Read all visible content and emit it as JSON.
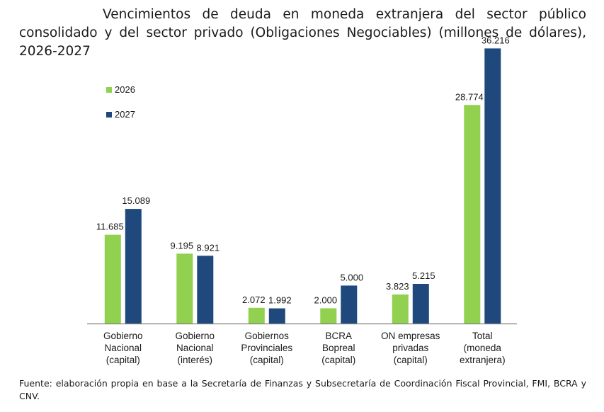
{
  "chart_data": {
    "type": "bar",
    "title": "Vencimientos de deuda en moneda extranjera del sector público consolidado y del sector privado (Obligaciones Negociables) (millones de dólares), 2026-2027",
    "categories": [
      [
        "Gobierno",
        "Nacional",
        "(capital)"
      ],
      [
        "Gobierno",
        "Nacional",
        "(interés)"
      ],
      [
        "Gobiernos",
        "Provinciales",
        "(capital)"
      ],
      [
        "BCRA",
        "Bopreal",
        "(capital)"
      ],
      [
        "ON empresas",
        "privadas",
        "(capital)"
      ],
      [
        "Total",
        "(moneda",
        "extranjera)"
      ]
    ],
    "series": [
      {
        "name": "2026",
        "color": "#92d050",
        "values": [
          11685,
          9195,
          2072,
          2000,
          3823,
          28774
        ],
        "labels": [
          "11.685",
          "9.195",
          "2.072",
          "2.000",
          "3.823",
          "28.774"
        ]
      },
      {
        "name": "2027",
        "color": "#1f497d",
        "values": [
          15089,
          8921,
          1992,
          5000,
          5215,
          36216
        ],
        "labels": [
          "15.089",
          "8.921",
          "1.992",
          "5.000",
          "5.215",
          "36.216"
        ]
      }
    ],
    "xlabel": "",
    "ylabel": "",
    "ylim": [
      0,
      37000
    ],
    "grid": false,
    "legend": "top-left"
  },
  "source_text": "Fuente: elaboración propia en base a la Secretaría de Finanzas y Subsecretaría de Coordinación Fiscal Provincial, FMI, BCRA y CNV."
}
